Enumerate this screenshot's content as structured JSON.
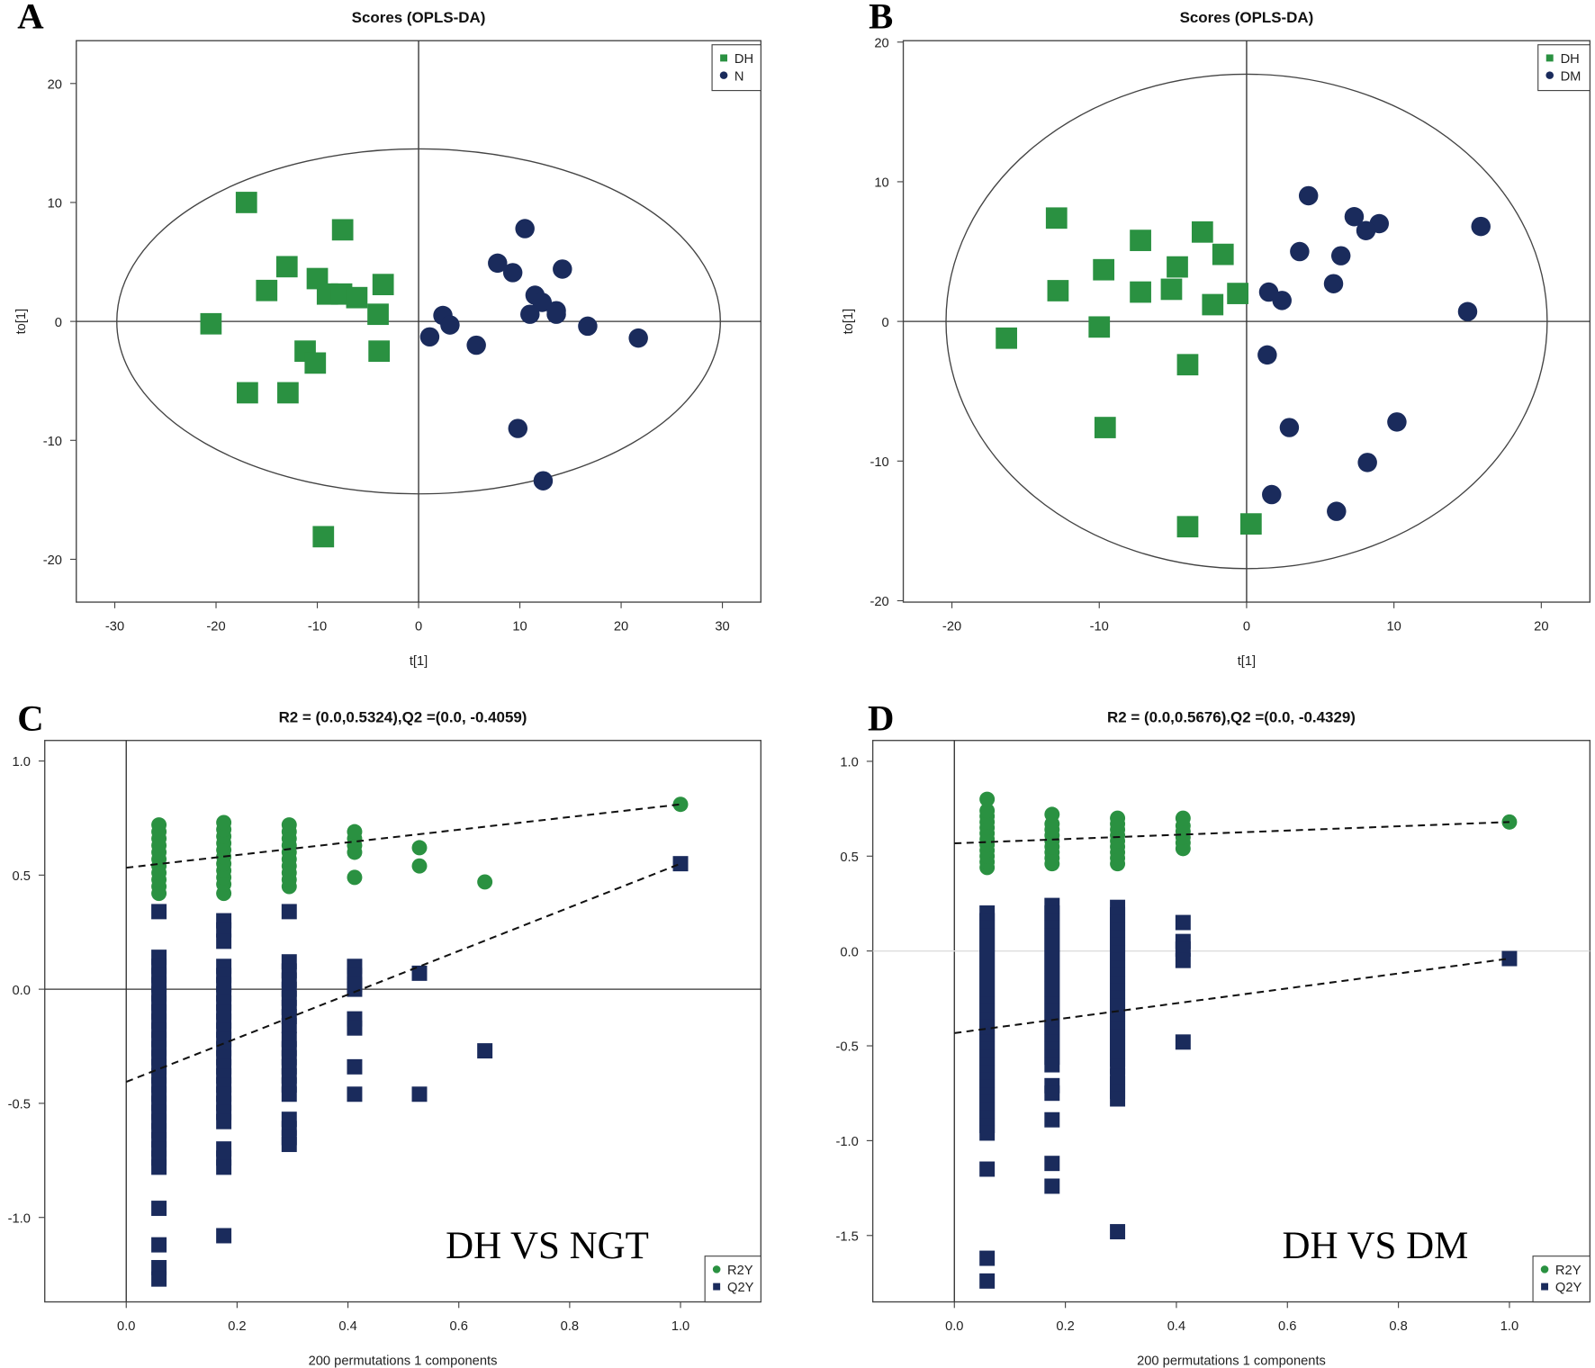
{
  "colors": {
    "green": "#2a9141",
    "navy": "#1a2b5c"
  },
  "chart_data": [
    {
      "panel_label": "A",
      "type": "scatter",
      "title": "Scores (OPLS-DA)",
      "xlabel": "t[1]",
      "ylabel": "to[1]",
      "xlim": [
        -33.8,
        33.8
      ],
      "ylim": [
        -23.6,
        23.6
      ],
      "xticks": [
        -30,
        -20,
        -10,
        0,
        10,
        20,
        30
      ],
      "yticks": [
        -20,
        -10,
        0,
        10,
        20
      ],
      "ellipse": {
        "rx": 29.8,
        "ry": 14.5
      },
      "reference_lines": {
        "x": 0,
        "y": 0
      },
      "legend_position": "top-right",
      "series": [
        {
          "name": "DH",
          "marker": "square",
          "color": "#2a9141",
          "points": [
            [
              -17,
              10
            ],
            [
              -7.5,
              7.7
            ],
            [
              -13,
              4.6
            ],
            [
              -10,
              3.6
            ],
            [
              -15,
              2.6
            ],
            [
              -9,
              2.3
            ],
            [
              -7.6,
              2.3
            ],
            [
              -6.1,
              2.0
            ],
            [
              -3.5,
              3.1
            ],
            [
              -4,
              0.6
            ],
            [
              -20.5,
              -0.2
            ],
            [
              -11.2,
              -2.5
            ],
            [
              -10.2,
              -3.5
            ],
            [
              -3.9,
              -2.5
            ],
            [
              -16.9,
              -6
            ],
            [
              -12.9,
              -6
            ],
            [
              -9.4,
              -18.1
            ]
          ]
        },
        {
          "name": "N",
          "marker": "circle",
          "color": "#1a2b5c",
          "points": [
            [
              10.5,
              7.8
            ],
            [
              7.8,
              4.9
            ],
            [
              9.3,
              4.1
            ],
            [
              14.2,
              4.4
            ],
            [
              11.5,
              2.2
            ],
            [
              12.2,
              1.6
            ],
            [
              11,
              0.6
            ],
            [
              13.6,
              0.9
            ],
            [
              13.6,
              0.6
            ],
            [
              2.4,
              0.5
            ],
            [
              3.1,
              -0.3
            ],
            [
              1.1,
              -1.3
            ],
            [
              5.7,
              -2.0
            ],
            [
              16.7,
              -0.4
            ],
            [
              21.7,
              -1.4
            ],
            [
              9.8,
              -9
            ],
            [
              12.3,
              -13.4
            ]
          ]
        }
      ]
    },
    {
      "panel_label": "B",
      "type": "scatter",
      "title": "Scores (OPLS-DA)",
      "xlabel": "t[1]",
      "ylabel": "to[1]",
      "xlim": [
        -23.3,
        23.3
      ],
      "ylim": [
        -20.1,
        20.1
      ],
      "xticks": [
        -20,
        -10,
        0,
        10,
        20
      ],
      "yticks": [
        -20,
        -10,
        0,
        10,
        20
      ],
      "ellipse": {
        "rx": 20.4,
        "ry": 17.7
      },
      "reference_lines": {
        "x": 0,
        "y": 0
      },
      "legend_position": "top-right",
      "series": [
        {
          "name": "DH",
          "marker": "square",
          "color": "#2a9141",
          "points": [
            [
              -12.9,
              7.4
            ],
            [
              -3,
              6.4
            ],
            [
              -7.2,
              5.8
            ],
            [
              -1.6,
              4.8
            ],
            [
              -9.7,
              3.7
            ],
            [
              -4.7,
              3.9
            ],
            [
              -12.8,
              2.2
            ],
            [
              -7.2,
              2.1
            ],
            [
              -5.1,
              2.3
            ],
            [
              -2.3,
              1.2
            ],
            [
              -0.6,
              2.0
            ],
            [
              -16.3,
              -1.2
            ],
            [
              -10,
              -0.4
            ],
            [
              -4,
              -3.1
            ],
            [
              -9.6,
              -7.6
            ],
            [
              -4,
              -14.7
            ],
            [
              0.3,
              -14.5
            ]
          ]
        },
        {
          "name": "DM",
          "marker": "circle",
          "color": "#1a2b5c",
          "points": [
            [
              4.2,
              9
            ],
            [
              7.3,
              7.5
            ],
            [
              9,
              7
            ],
            [
              8.1,
              6.5
            ],
            [
              15.9,
              6.8
            ],
            [
              3.6,
              5
            ],
            [
              6.4,
              4.7
            ],
            [
              5.9,
              2.7
            ],
            [
              1.5,
              2.1
            ],
            [
              2.4,
              1.5
            ],
            [
              15,
              0.7
            ],
            [
              1.4,
              -2.4
            ],
            [
              2.9,
              -7.6
            ],
            [
              10.2,
              -7.2
            ],
            [
              8.2,
              -10.1
            ],
            [
              1.7,
              -12.4
            ],
            [
              6.1,
              -13.6
            ]
          ]
        }
      ]
    },
    {
      "panel_label": "C",
      "type": "scatter",
      "title": "R2 = (0.0,0.5324),Q2 =(0.0, -0.4059)",
      "xlabel": "200 permutations 1 components",
      "annotation": "DH VS NGT",
      "xlim": [
        -0.147,
        1.145
      ],
      "ylim": [
        -1.37,
        1.09
      ],
      "xticks": [
        "0.0",
        "0.2",
        "0.4",
        "0.6",
        "0.8",
        "1.0"
      ],
      "yticks": [
        "-1.0",
        "-0.5",
        "0.0",
        "0.5",
        "1.0"
      ],
      "zero_line": "dark",
      "legend_position": "bottom-right",
      "regression_lines": {
        "R2Y": [
          [
            0,
            0.5324
          ],
          [
            1,
            0.81
          ]
        ],
        "Q2Y": [
          [
            0,
            -0.4059
          ],
          [
            1,
            0.55
          ]
        ]
      },
      "series": [
        {
          "name": "R2Y",
          "marker": "circle",
          "color": "#2a9141",
          "columns": [
            {
              "x": 0.059,
              "values": [
                0.42,
                0.45,
                0.48,
                0.51,
                0.54,
                0.57,
                0.6,
                0.63,
                0.66,
                0.69,
                0.72
              ]
            },
            {
              "x": 0.176,
              "values": [
                0.42,
                0.46,
                0.49,
                0.52,
                0.55,
                0.58,
                0.61,
                0.64,
                0.67,
                0.7,
                0.73
              ]
            },
            {
              "x": 0.294,
              "values": [
                0.45,
                0.48,
                0.51,
                0.54,
                0.57,
                0.6,
                0.63,
                0.66,
                0.69,
                0.72
              ]
            },
            {
              "x": 0.412,
              "values": [
                0.49,
                0.6,
                0.63,
                0.66,
                0.69
              ]
            },
            {
              "x": 0.529,
              "values": [
                0.54,
                0.62
              ]
            },
            {
              "x": 0.647,
              "values": [
                0.47
              ]
            },
            {
              "x": 1.0,
              "values": [
                0.81
              ]
            }
          ]
        },
        {
          "name": "Q2Y",
          "marker": "square",
          "color": "#1a2b5c",
          "columns": [
            {
              "x": 0.059,
              "values": [
                0.34,
                0.14,
                0.1,
                0.06,
                0.02,
                -0.02,
                -0.06,
                -0.1,
                -0.14,
                -0.18,
                -0.22,
                -0.26,
                -0.3,
                -0.34,
                -0.38,
                -0.42,
                -0.46,
                -0.5,
                -0.54,
                -0.58,
                -0.62,
                -0.66,
                -0.7,
                -0.74,
                -0.78,
                -0.96,
                -1.12,
                -1.22,
                -1.27
              ]
            },
            {
              "x": 0.176,
              "values": [
                0.3,
                0.26,
                0.21,
                0.1,
                0.06,
                0.02,
                -0.02,
                -0.06,
                -0.1,
                -0.14,
                -0.18,
                -0.22,
                -0.26,
                -0.3,
                -0.34,
                -0.38,
                -0.42,
                -0.46,
                -0.5,
                -0.54,
                -0.58,
                -0.7,
                -0.74,
                -0.78,
                -1.08
              ]
            },
            {
              "x": 0.294,
              "values": [
                0.34,
                0.12,
                0.08,
                0.04,
                0.0,
                -0.04,
                -0.08,
                -0.12,
                -0.16,
                -0.22,
                -0.26,
                -0.3,
                -0.34,
                -0.38,
                -0.42,
                -0.46,
                -0.57,
                -0.61,
                -0.65,
                -0.68
              ]
            },
            {
              "x": 0.412,
              "values": [
                0.1,
                0.06,
                0.02,
                0.0,
                -0.13,
                -0.17,
                -0.34,
                -0.46
              ]
            },
            {
              "x": 0.529,
              "values": [
                0.07,
                -0.46
              ]
            },
            {
              "x": 0.647,
              "values": [
                -0.27
              ]
            },
            {
              "x": 1.0,
              "values": [
                0.55
              ]
            }
          ]
        }
      ]
    },
    {
      "panel_label": "D",
      "type": "scatter",
      "title": "R2 = (0.0,0.5676),Q2 =(0.0, -0.4329)",
      "xlabel": "200 permutations 1 components",
      "annotation": "DH VS DM",
      "xlim": [
        -0.147,
        1.145
      ],
      "ylim": [
        -1.85,
        1.11
      ],
      "xticks": [
        "0.0",
        "0.2",
        "0.4",
        "0.6",
        "0.8",
        "1.0"
      ],
      "yticks": [
        "-1.5",
        "-1.0",
        "-0.5",
        "0.0",
        "0.5",
        "1.0"
      ],
      "zero_line": "light",
      "legend_position": "bottom-right",
      "regression_lines": {
        "R2Y": [
          [
            0,
            0.5676
          ],
          [
            1,
            0.68
          ]
        ],
        "Q2Y": [
          [
            0,
            -0.4329
          ],
          [
            1,
            -0.04
          ]
        ]
      },
      "series": [
        {
          "name": "R2Y",
          "marker": "circle",
          "color": "#2a9141",
          "columns": [
            {
              "x": 0.059,
              "values": [
                0.44,
                0.47,
                0.5,
                0.53,
                0.56,
                0.59,
                0.62,
                0.65,
                0.68,
                0.71,
                0.74,
                0.8
              ]
            },
            {
              "x": 0.176,
              "values": [
                0.46,
                0.49,
                0.52,
                0.55,
                0.58,
                0.61,
                0.64,
                0.67,
                0.72
              ]
            },
            {
              "x": 0.294,
              "values": [
                0.46,
                0.49,
                0.52,
                0.55,
                0.58,
                0.61,
                0.64,
                0.67,
                0.7
              ]
            },
            {
              "x": 0.412,
              "values": [
                0.54,
                0.57,
                0.6,
                0.63,
                0.66,
                0.7
              ]
            },
            {
              "x": 1.0,
              "values": [
                0.68
              ]
            }
          ]
        },
        {
          "name": "Q2Y",
          "marker": "square",
          "color": "#1a2b5c",
          "columns": [
            {
              "x": 0.059,
              "values": [
                0.2,
                0.16,
                0.12,
                0.08,
                0.04,
                0.0,
                -0.04,
                -0.08,
                -0.12,
                -0.16,
                -0.2,
                -0.24,
                -0.28,
                -0.32,
                -0.36,
                -0.4,
                -0.44,
                -0.48,
                -0.52,
                -0.56,
                -0.6,
                -0.64,
                -0.68,
                -0.72,
                -0.76,
                -0.8,
                -0.84,
                -0.88,
                -0.92,
                -0.96,
                -1.15,
                -1.62,
                -1.74
              ]
            },
            {
              "x": 0.176,
              "values": [
                0.24,
                0.2,
                0.16,
                0.12,
                0.08,
                0.04,
                0.0,
                -0.04,
                -0.08,
                -0.12,
                -0.16,
                -0.2,
                -0.24,
                -0.28,
                -0.32,
                -0.36,
                -0.4,
                -0.44,
                -0.48,
                -0.52,
                -0.56,
                -0.6,
                -0.71,
                -0.75,
                -0.89,
                -1.12,
                -1.24
              ]
            },
            {
              "x": 0.294,
              "values": [
                0.23,
                0.19,
                0.15,
                0.11,
                0.07,
                0.03,
                -0.01,
                -0.05,
                -0.09,
                -0.13,
                -0.17,
                -0.21,
                -0.25,
                -0.29,
                -0.33,
                -0.37,
                -0.41,
                -0.45,
                -0.49,
                -0.53,
                -0.57,
                -0.61,
                -0.66,
                -0.7,
                -0.74,
                -0.78,
                -1.48
              ]
            },
            {
              "x": 0.412,
              "values": [
                0.15,
                0.05,
                0.01,
                -0.05,
                -0.48
              ]
            },
            {
              "x": 1.0,
              "values": [
                -0.04
              ]
            }
          ]
        }
      ]
    }
  ]
}
